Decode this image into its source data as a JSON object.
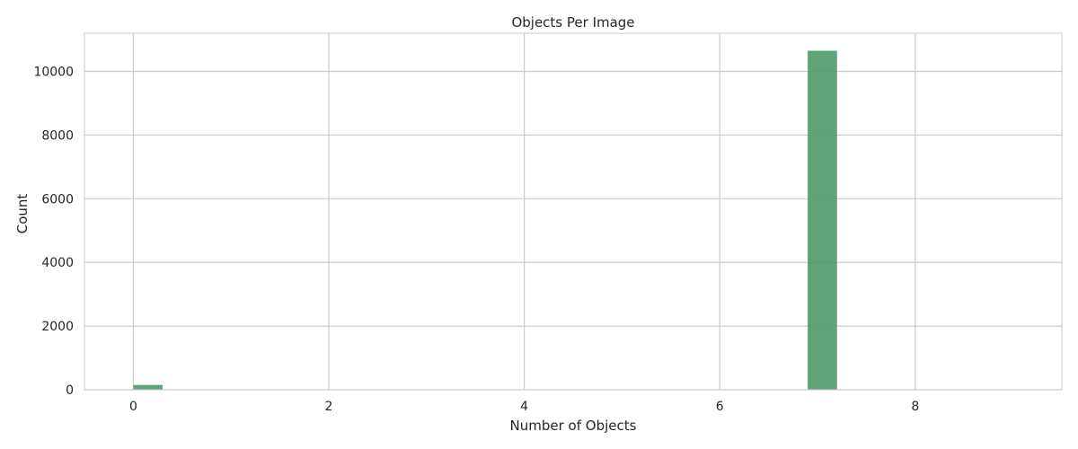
{
  "chart_data": {
    "type": "bar",
    "title": "Objects Per Image",
    "xlabel": "Number of Objects",
    "ylabel": "Count",
    "xlim": [
      -0.5,
      9.5
    ],
    "ylim": [
      0,
      11200
    ],
    "x_ticks": [
      0,
      2,
      4,
      6,
      8
    ],
    "y_ticks": [
      0,
      2000,
      4000,
      6000,
      8000,
      10000
    ],
    "bins": [
      {
        "start": 0.0,
        "end": 0.3,
        "value": 150
      },
      {
        "start": 6.9,
        "end": 7.2,
        "value": 10650
      }
    ],
    "bar_color": "#4c9a6a",
    "grid": true
  }
}
